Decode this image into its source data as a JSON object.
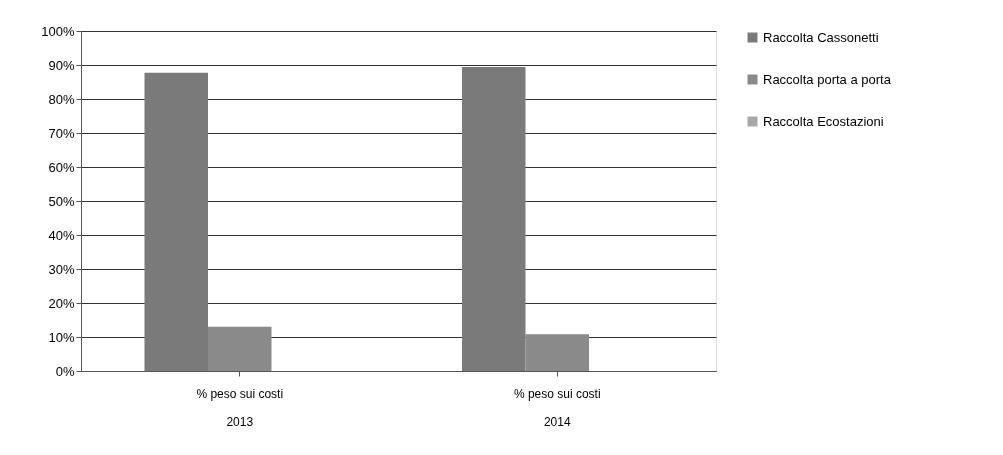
{
  "chart_data": {
    "type": "bar",
    "categories": [
      "% peso sui costi\n2013",
      "% peso sui costi\n2014"
    ],
    "series": [
      {
        "name": "Raccolta Cassonetti",
        "color": "#7a7a7a",
        "values": [
          87.7,
          89.4
        ]
      },
      {
        "name": "Raccolta porta a porta",
        "color": "#8a8a8a",
        "values": [
          13.0,
          10.8
        ]
      },
      {
        "name": "Raccolta Ecostazioni",
        "color": "#a8a8a8",
        "values": [
          0,
          0
        ]
      }
    ],
    "ylim": [
      0,
      100
    ],
    "yticks": [
      {
        "value": 0,
        "label": "0%"
      },
      {
        "value": 10,
        "label": "10%"
      },
      {
        "value": 20,
        "label": "20%"
      },
      {
        "value": 30,
        "label": "30%"
      },
      {
        "value": 40,
        "label": "40%"
      },
      {
        "value": 50,
        "label": "50%"
      },
      {
        "value": 60,
        "label": "60%"
      },
      {
        "value": 70,
        "label": "70%"
      },
      {
        "value": 80,
        "label": "80%"
      },
      {
        "value": 90,
        "label": "90%"
      },
      {
        "value": 100,
        "label": "100%"
      }
    ],
    "grid": "y",
    "legend": "right"
  }
}
